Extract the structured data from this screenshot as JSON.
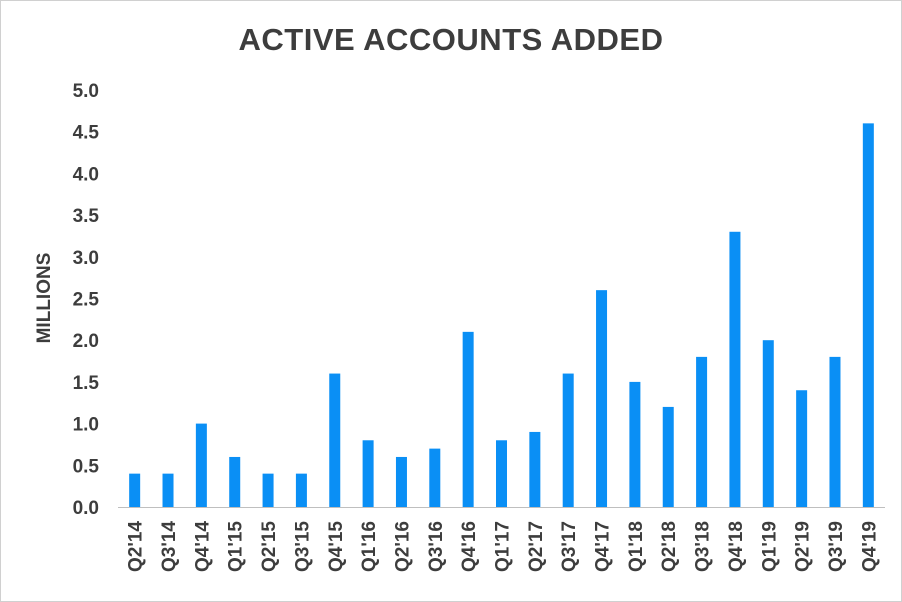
{
  "chart_data": {
    "type": "bar",
    "title": "ACTIVE ACCOUNTS ADDED",
    "xlabel": "",
    "ylabel": "MILLIONS",
    "ylim": [
      0,
      5.0
    ],
    "yticks": [
      "0.0",
      "0.5",
      "1.0",
      "1.5",
      "2.0",
      "2.5",
      "3.0",
      "3.5",
      "4.0",
      "4.5",
      "5.0"
    ],
    "categories": [
      "Q2'14",
      "Q3'14",
      "Q4'14",
      "Q1'15",
      "Q2'15",
      "Q3'15",
      "Q4'15",
      "Q1'16",
      "Q2'16",
      "Q3'16",
      "Q4'16",
      "Q1'17",
      "Q2'17",
      "Q3'17",
      "Q4'17",
      "Q1'18",
      "Q2'18",
      "Q3'18",
      "Q4'18",
      "Q1'19",
      "Q2'19",
      "Q3'19",
      "Q4'19"
    ],
    "values": [
      0.4,
      0.4,
      1.0,
      0.6,
      0.4,
      0.4,
      1.6,
      0.8,
      0.6,
      0.7,
      2.1,
      0.8,
      0.9,
      1.6,
      2.6,
      1.5,
      1.2,
      1.8,
      3.3,
      2.0,
      1.4,
      1.8,
      4.6
    ],
    "bar_color": "#0a8ff5",
    "grid": false,
    "legend": "none"
  }
}
